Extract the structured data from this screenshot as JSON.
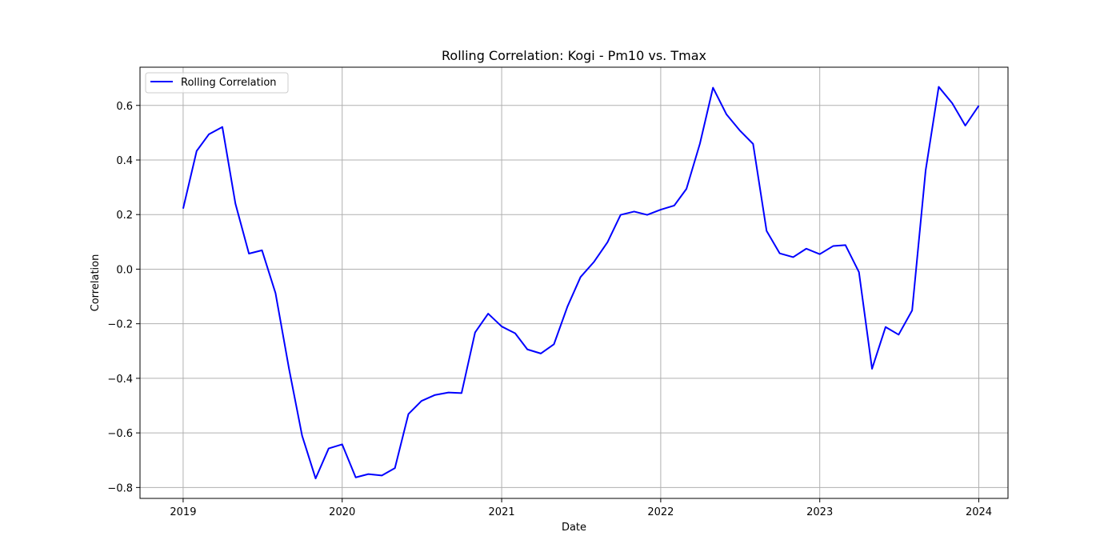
{
  "chart_data": {
    "type": "line",
    "title": "Rolling Correlation: Kogi - Pm10 vs. Tmax",
    "xlabel": "Date",
    "ylabel": "Correlation",
    "xlim": [
      "2018-09-24",
      "2024-03-08"
    ],
    "ylim": [
      -0.84,
      0.74
    ],
    "x_ticks": [
      "2019-01-01",
      "2020-01-01",
      "2021-01-01",
      "2022-01-01",
      "2023-01-01",
      "2024-01-01"
    ],
    "x_tick_labels": [
      "2019",
      "2020",
      "2021",
      "2022",
      "2023",
      "2024"
    ],
    "y_ticks": [
      -0.8,
      -0.6,
      -0.4,
      -0.2,
      0.0,
      0.2,
      0.4,
      0.6
    ],
    "y_tick_labels": [
      "−0.8",
      "−0.6",
      "−0.4",
      "−0.2",
      "0.0",
      "0.2",
      "0.4",
      "0.6"
    ],
    "grid": true,
    "legend_position": "upper left",
    "color": "#0000ff",
    "series": [
      {
        "name": "Rolling Correlation",
        "x": [
          "2019-01-01",
          "2019-02-01",
          "2019-03-01",
          "2019-04-01",
          "2019-05-01",
          "2019-06-01",
          "2019-07-01",
          "2019-08-01",
          "2019-09-01",
          "2019-10-01",
          "2019-11-01",
          "2019-12-01",
          "2020-01-01",
          "2020-02-01",
          "2020-03-01",
          "2020-04-01",
          "2020-05-01",
          "2020-06-01",
          "2020-07-01",
          "2020-08-01",
          "2020-09-01",
          "2020-10-01",
          "2020-11-01",
          "2020-12-01",
          "2021-01-01",
          "2021-02-01",
          "2021-03-01",
          "2021-04-01",
          "2021-05-01",
          "2021-06-01",
          "2021-07-01",
          "2021-08-01",
          "2021-09-01",
          "2021-10-01",
          "2021-11-01",
          "2021-12-01",
          "2022-01-01",
          "2022-02-01",
          "2022-03-01",
          "2022-04-01",
          "2022-05-01",
          "2022-06-01",
          "2022-07-01",
          "2022-08-01",
          "2022-09-01",
          "2022-10-01",
          "2022-11-01",
          "2022-12-01",
          "2023-01-01",
          "2023-02-01",
          "2023-03-01",
          "2023-04-01",
          "2023-05-01",
          "2023-06-01",
          "2023-07-01",
          "2023-08-01",
          "2023-09-01",
          "2023-10-01",
          "2023-11-01",
          "2023-12-01",
          "2024-01-01"
        ],
        "y": [
          0.222,
          0.433,
          0.494,
          0.521,
          0.24,
          0.057,
          0.069,
          -0.088,
          -0.365,
          -0.61,
          -0.767,
          -0.657,
          -0.642,
          -0.763,
          -0.751,
          -0.756,
          -0.729,
          -0.531,
          -0.483,
          -0.461,
          -0.452,
          -0.454,
          -0.232,
          -0.163,
          -0.21,
          -0.235,
          -0.294,
          -0.309,
          -0.275,
          -0.137,
          -0.029,
          0.027,
          0.099,
          0.199,
          0.211,
          0.199,
          0.218,
          0.233,
          0.294,
          0.46,
          0.665,
          0.567,
          0.509,
          0.459,
          0.14,
          0.058,
          0.044,
          0.075,
          0.055,
          0.085,
          0.088,
          -0.011,
          -0.365,
          -0.212,
          -0.24,
          -0.151,
          0.362,
          0.668,
          0.608,
          0.526,
          0.599
        ]
      }
    ]
  }
}
